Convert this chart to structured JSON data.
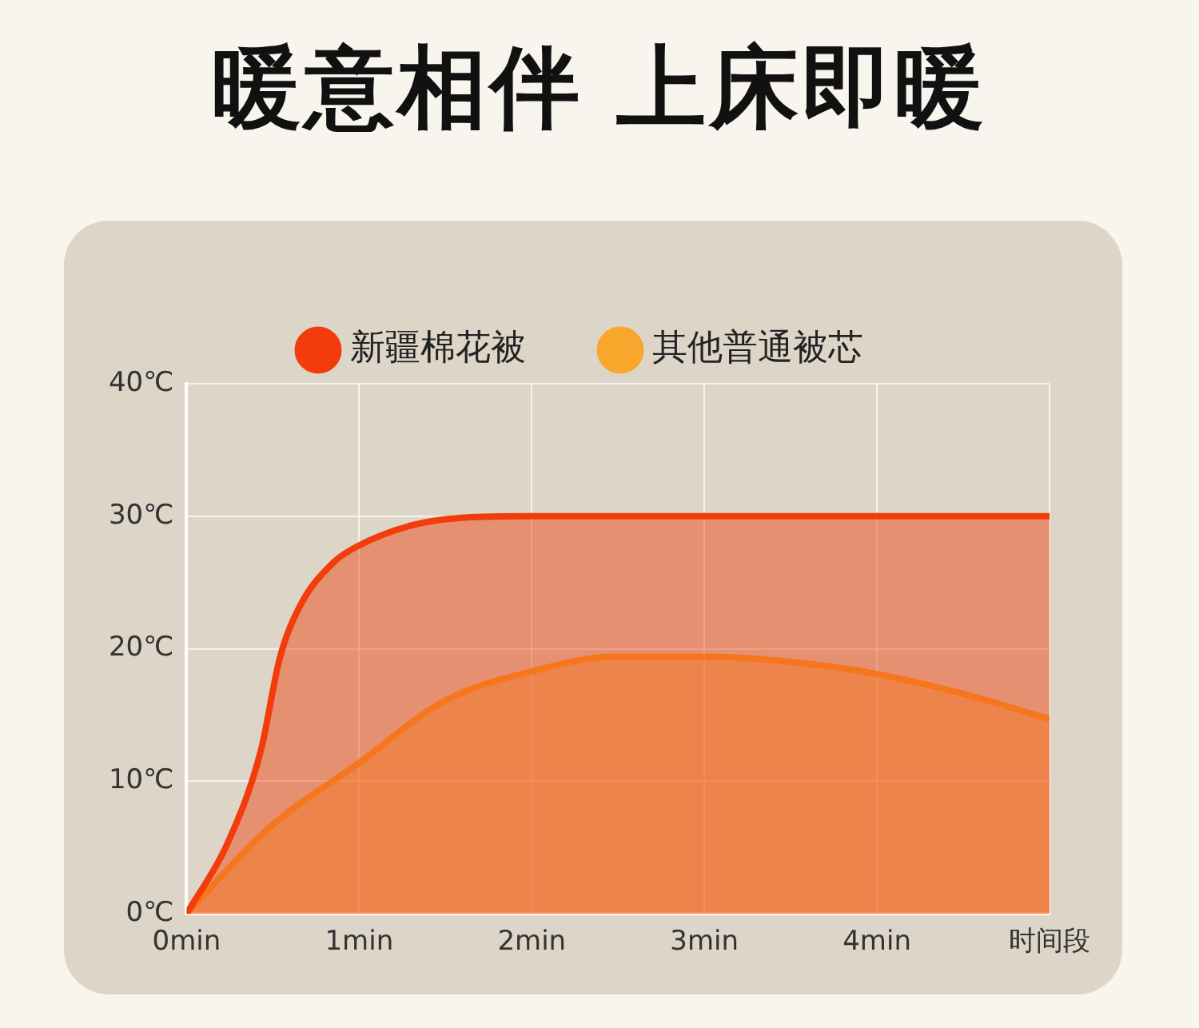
{
  "chart_data": {
    "type": "area",
    "title": "暖意相伴 上床即暖",
    "series": [
      {
        "name": "新疆棉花被",
        "color": "#f23c0c",
        "x": [
          0,
          0.24,
          0.43,
          0.54,
          0.66,
          0.85,
          1,
          1.3,
          1.61,
          2,
          3,
          4,
          5
        ],
        "values": [
          0,
          5.4,
          12.3,
          19.3,
          23.3,
          26.5,
          27.8,
          29.3,
          29.9,
          30,
          30,
          30,
          30
        ]
      },
      {
        "name": "其他普通被芯",
        "color": "#f8a72c",
        "x": [
          0,
          0.47,
          1,
          1.5,
          2,
          2.48,
          3,
          3.51,
          4,
          4.5,
          5
        ],
        "values": [
          0,
          6.4,
          11.4,
          16.1,
          18.3,
          19.4,
          19.4,
          19,
          18.1,
          16.6,
          14.7
        ]
      }
    ],
    "xlim": [
      0,
      5
    ],
    "xticks": [
      {
        "value": 0,
        "label": "0min"
      },
      {
        "value": 1,
        "label": "1min"
      },
      {
        "value": 2,
        "label": "2min"
      },
      {
        "value": 3,
        "label": "3min"
      },
      {
        "value": 4,
        "label": "4min"
      },
      {
        "value": 5,
        "label": "时间段"
      }
    ],
    "ylim": [
      0,
      40
    ],
    "yticks": [
      {
        "value": 0,
        "label": "0℃"
      },
      {
        "value": 10,
        "label": "10℃"
      },
      {
        "value": 20,
        "label": "20℃"
      },
      {
        "value": 30,
        "label": "30℃"
      },
      {
        "value": 40,
        "label": "40℃"
      }
    ],
    "grid": true,
    "legend": "top",
    "marker": "none"
  }
}
